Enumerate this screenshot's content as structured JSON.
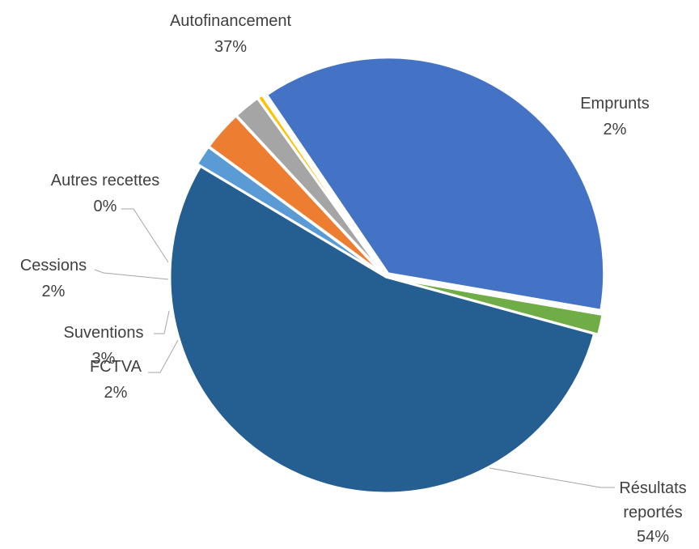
{
  "chart_data": {
    "type": "pie",
    "title": "",
    "legend": "none",
    "slices": [
      {
        "name": "Autofinancement",
        "value": 37,
        "pct_label": "37%",
        "color": "#4472C4"
      },
      {
        "name": "Emprunts",
        "value": 1.5,
        "pct_label": "2%",
        "color": "#70AD47"
      },
      {
        "name": "Résultats reportés",
        "name_lines": [
          "Résultats",
          "reportés"
        ],
        "value": 54,
        "pct_label": "54%",
        "color": "#255E91"
      },
      {
        "name": "FCTVA",
        "value": 1.5,
        "pct_label": "2%",
        "color": "#5B9BD5"
      },
      {
        "name": "Suventions",
        "value": 3,
        "pct_label": "3%",
        "color": "#ED7D31"
      },
      {
        "name": "Cessions",
        "value": 2,
        "pct_label": "2%",
        "color": "#A5A5A5"
      },
      {
        "name": "Autres recettes",
        "value": 0.4,
        "pct_label": "0%",
        "color": "#FFC000"
      }
    ],
    "leader_line_color": "#A6A6A6"
  }
}
